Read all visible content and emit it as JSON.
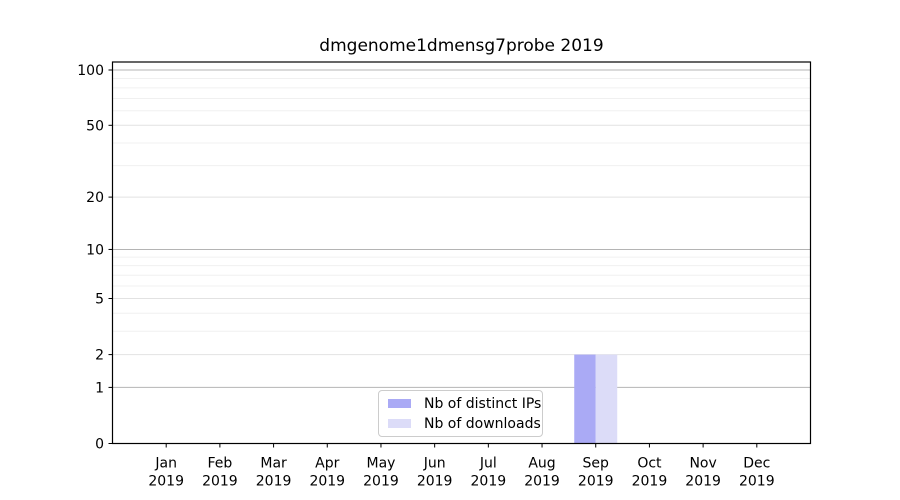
{
  "chart_data": {
    "type": "bar",
    "title": "dmgenome1dmensg7probe 2019",
    "categories": [
      "Jan 2019",
      "Feb 2019",
      "Mar 2019",
      "Apr 2019",
      "May 2019",
      "Jun 2019",
      "Jul 2019",
      "Aug 2019",
      "Sep 2019",
      "Oct 2019",
      "Nov 2019",
      "Dec 2019"
    ],
    "x_tick_line1": [
      "Jan",
      "Feb",
      "Mar",
      "Apr",
      "May",
      "Jun",
      "Jul",
      "Aug",
      "Sep",
      "Oct",
      "Nov",
      "Dec"
    ],
    "x_tick_line2": [
      "2019",
      "2019",
      "2019",
      "2019",
      "2019",
      "2019",
      "2019",
      "2019",
      "2019",
      "2019",
      "2019",
      "2019"
    ],
    "series": [
      {
        "name": "Nb of distinct IPs",
        "color": "#aaaaf5",
        "values": [
          0,
          0,
          0,
          0,
          0,
          0,
          0,
          0,
          2,
          0,
          0,
          0
        ]
      },
      {
        "name": "Nb of downloads",
        "color": "#dcdcf8",
        "values": [
          0,
          0,
          0,
          0,
          0,
          0,
          0,
          0,
          2,
          0,
          0,
          0
        ]
      }
    ],
    "xlabel": "",
    "ylabel": "",
    "yscale": "log1p",
    "ylim": [
      0,
      110
    ],
    "yticks": [
      0,
      1,
      2,
      5,
      10,
      20,
      50,
      100
    ],
    "ytick_labels": [
      "0",
      "1",
      "2",
      "5",
      "10",
      "20",
      "50",
      "100"
    ],
    "yticks_minor": [
      3,
      4,
      6,
      7,
      8,
      9,
      30,
      40,
      60,
      70,
      80,
      90
    ],
    "grid": "horizontal",
    "legend_position": "inside-bottom-center",
    "colors": {
      "background": "#ffffff",
      "spine": "#000000",
      "grid_power10": "#b4b4b4",
      "grid_major": "#e2e2e2",
      "grid_minor": "#f0f0f0",
      "tick_text": "#000000",
      "legend_border": "#cccccc"
    }
  }
}
